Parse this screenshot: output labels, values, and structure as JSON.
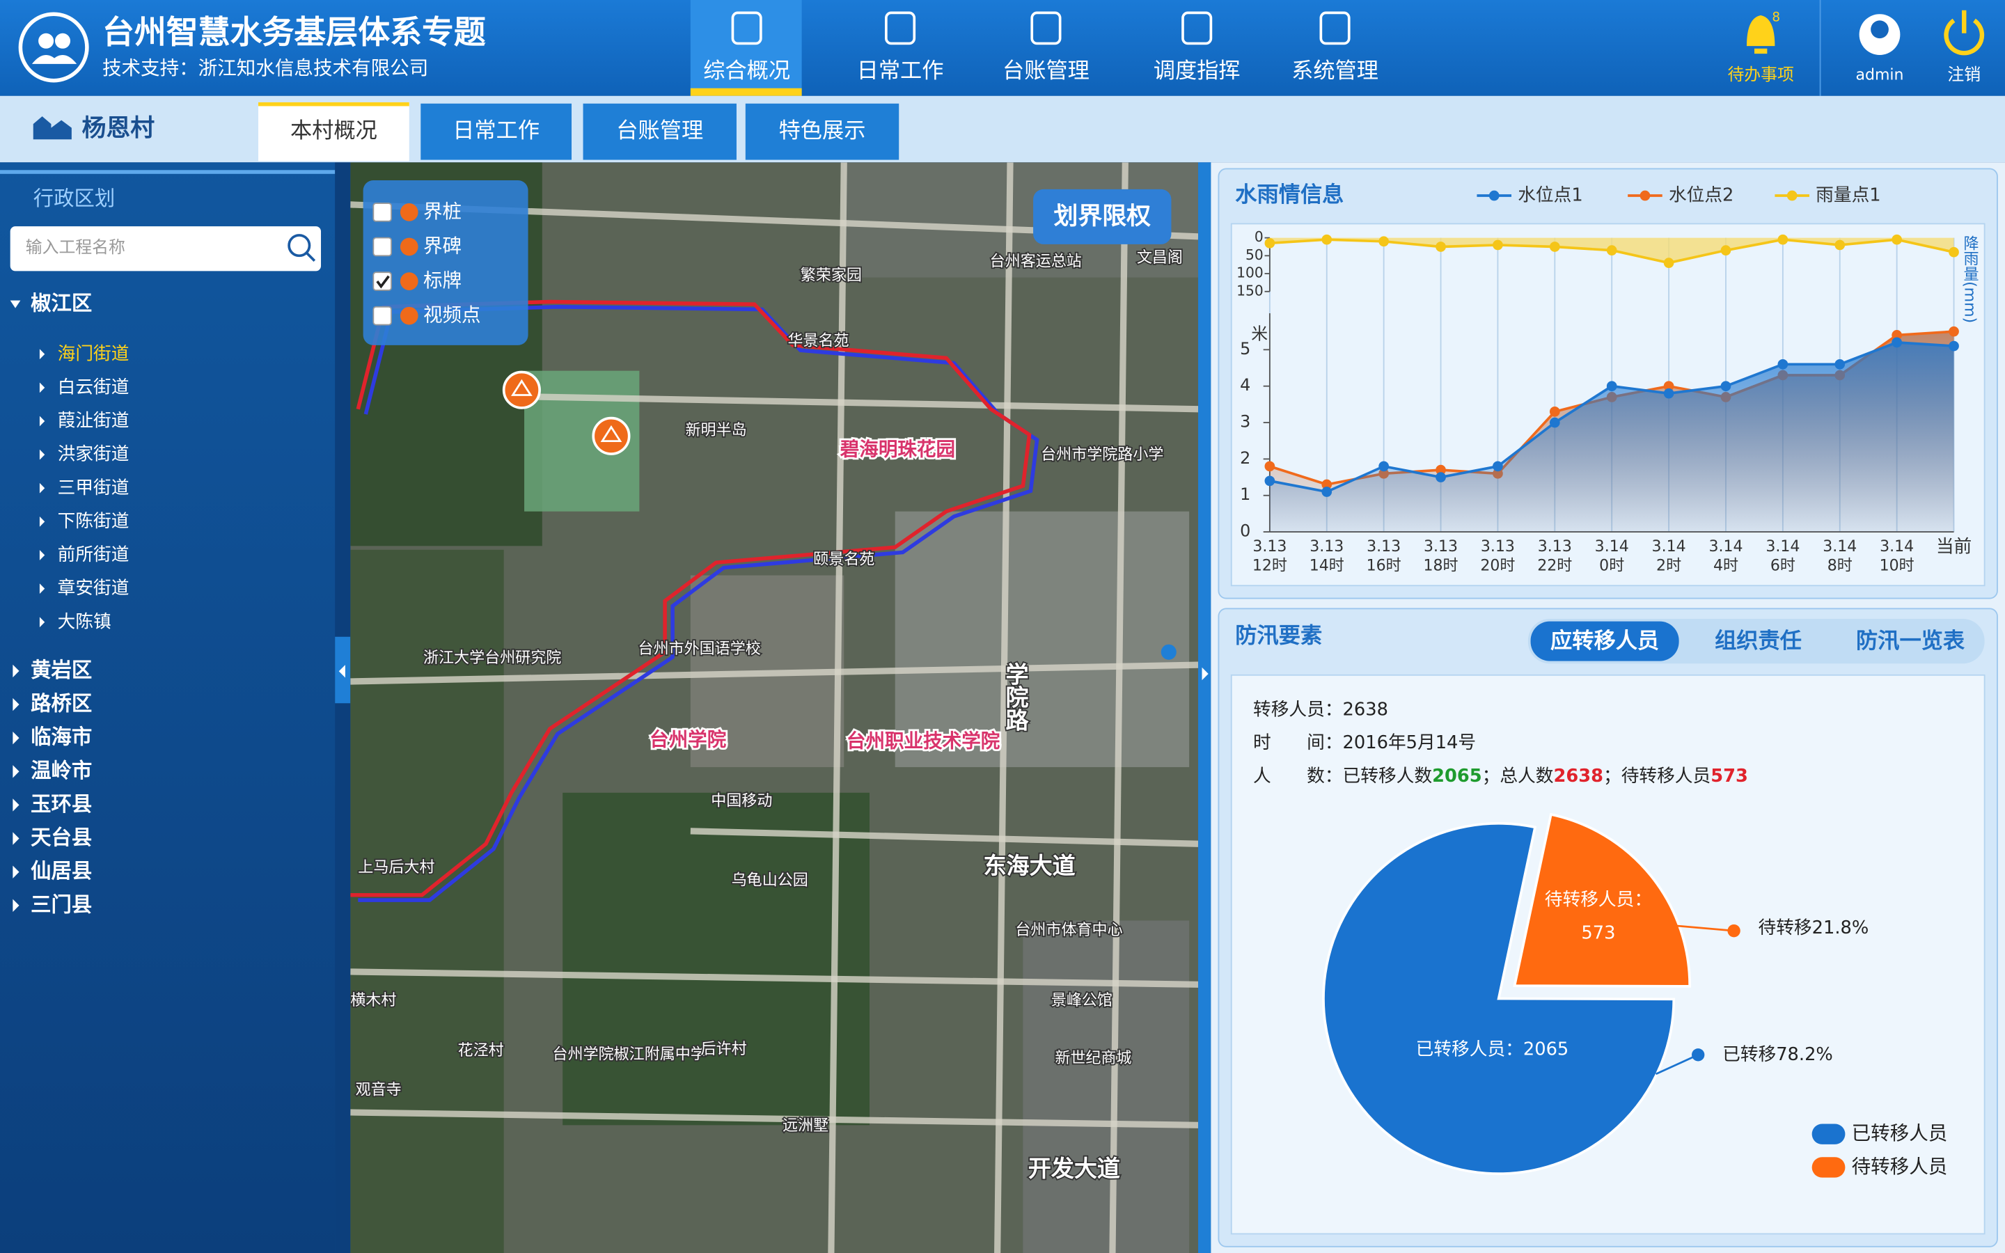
{
  "header": {
    "title": "台州智慧水务基层体系专题",
    "subtitle": "技术支持：浙江知水信息技术有限公司",
    "nav": [
      "综合概况",
      "日常工作",
      "台账管理",
      "调度指挥",
      "系统管理"
    ],
    "nav_active": 0,
    "todo": "待办事项",
    "badge": "8",
    "user": "admin",
    "logout": "注销"
  },
  "subbar": {
    "village": "杨恩村",
    "tabs": [
      "本村概况",
      "日常工作",
      "台账管理",
      "特色展示"
    ],
    "tabs_active": 0
  },
  "sidebar": {
    "title": "行政区划",
    "search_placeholder": "输入工程名称",
    "districts": [
      {
        "name": "椒江区",
        "children": [
          "海门街道",
          "白云街道",
          "葭沚街道",
          "洪家街道",
          "三甲街道",
          "下陈街道",
          "前所街道",
          "章安街道",
          "大陈镇"
        ],
        "selected_child": 0
      },
      {
        "name": "黄岩区"
      },
      {
        "name": "路桥区"
      },
      {
        "name": "临海市"
      },
      {
        "name": "温岭市"
      },
      {
        "name": "玉环县"
      },
      {
        "name": "天台县"
      },
      {
        "name": "仙居县"
      },
      {
        "name": "三门县"
      }
    ]
  },
  "map": {
    "layers": [
      {
        "name": "界桩",
        "checked": false
      },
      {
        "name": "界碑",
        "checked": false
      },
      {
        "name": "标牌",
        "checked": true
      },
      {
        "name": "视频点",
        "checked": false
      }
    ],
    "button": "划界限权",
    "labels": [
      "繁荣家园",
      "台州客运总站",
      "文昌阁",
      "华景名苑",
      "新明半岛",
      "碧海明珠花园",
      "台州市学院路小学",
      "颐景名苑",
      "浙江大学台州研究院",
      "台州市外国语学校",
      "台州学院",
      "台州职业技术学院",
      "中国移动",
      "乌龟山公园",
      "东海大道",
      "上马后大村",
      "台州市体育中心",
      "景峰公馆",
      "新世纪商城",
      "台州学院椒江附属中学",
      "后许村",
      "花泾村",
      "观音寺",
      "远洲墅",
      "开发大道",
      "横木村",
      "学院路"
    ]
  },
  "flood": {
    "title": "防汛要素",
    "tabs": [
      "应转移人员",
      "组织责任",
      "防汛一览表"
    ],
    "tabs_active": 0,
    "info": [
      [
        "转移人员：",
        "2638"
      ],
      [
        "时　　间：",
        "2016年5月14号"
      ],
      [
        "人　　数：",
        "已转移人数",
        "2065",
        "；总人数",
        "2638",
        "；待转移人员",
        "573"
      ]
    ]
  },
  "chart_data": [
    {
      "type": "line",
      "title": "水雨情信息",
      "categories": [
        [
          "3.13",
          "12时"
        ],
        [
          "3.13",
          "14时"
        ],
        [
          "3.13",
          "16时"
        ],
        [
          "3.13",
          "18时"
        ],
        [
          "3.13",
          "20时"
        ],
        [
          "3.13",
          "22时"
        ],
        [
          "3.14",
          "0时"
        ],
        [
          "3.14",
          "2时"
        ],
        [
          "3.14",
          "4时"
        ],
        [
          "3.14",
          "6时"
        ],
        [
          "3.14",
          "8时"
        ],
        [
          "3.14",
          "10时"
        ],
        [
          "当前"
        ]
      ],
      "ylabel": "米",
      "ylim": [
        0,
        6
      ],
      "yticks": [
        0,
        1,
        2,
        3,
        4,
        5
      ],
      "y2label": "降雨量(mm)",
      "y2lim": [
        0,
        150
      ],
      "y2ticks": [
        0,
        50,
        100,
        150
      ],
      "y2_inverted": true,
      "grid": true,
      "series": [
        {
          "name": "水位点1",
          "color": "#1f77d0",
          "values": [
            1.4,
            1.1,
            1.8,
            1.5,
            1.8,
            3.0,
            4.0,
            3.8,
            4.0,
            4.6,
            4.6,
            5.2,
            5.1
          ]
        },
        {
          "name": "水位点2",
          "color": "#f06a1c",
          "values": [
            1.8,
            1.3,
            1.6,
            1.7,
            1.6,
            3.3,
            3.7,
            4.0,
            3.7,
            4.3,
            4.3,
            5.4,
            5.5
          ]
        },
        {
          "name": "雨量点1",
          "color": "#f5c518",
          "axis": "y2",
          "values": [
            15,
            5,
            10,
            25,
            20,
            25,
            35,
            70,
            35,
            5,
            20,
            5,
            40
          ]
        }
      ]
    },
    {
      "type": "pie",
      "categories": [
        "已转移人员",
        "待转移人员"
      ],
      "values": [
        2065,
        573
      ],
      "colors": [
        "#1a73cf",
        "#ff6a10"
      ],
      "inner_labels": [
        [
          "已转移人员：2065"
        ],
        [
          "待转移人员：",
          "573"
        ]
      ],
      "outer_labels": [
        "已转移78.2%",
        "待转移21.8%"
      ],
      "legend": true
    }
  ]
}
